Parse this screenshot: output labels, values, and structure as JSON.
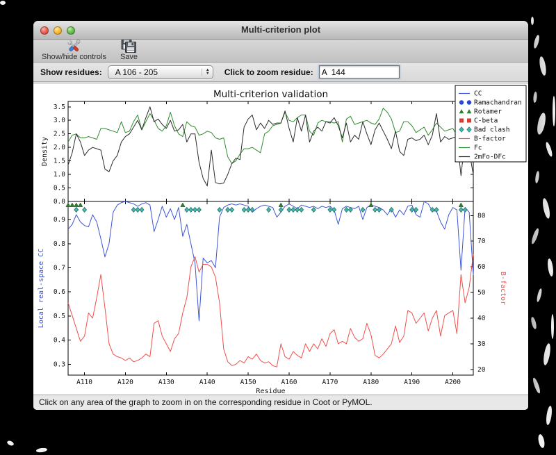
{
  "window": {
    "title": "Multi-criterion plot"
  },
  "toolbar": {
    "show_hide_label": "Show/hide controls",
    "save_label": "Save"
  },
  "controls": {
    "show_residues_label": "Show residues:",
    "residue_range_value": "A 106 - 205",
    "zoom_residue_label": "Click to zoom residue:",
    "zoom_residue_value": "A  144"
  },
  "status_bar": {
    "message": "Click on any area of the graph to zoom in on the corresponding residue in Coot or PyMOL."
  },
  "colors": {
    "cc_blue": "#3b54d9",
    "bfactor_red": "#ee4f4b",
    "fc_green": "#2e8b2e",
    "map_black": "#2b2b2b",
    "ramachandran_blue": "#2847d0",
    "rotamer_green": "#2e7d32",
    "cbeta_red": "#d93b2f",
    "clash_teal": "#45b5aa"
  },
  "legend": [
    {
      "label": "CC",
      "symbol": "line",
      "color": "#3b54d9"
    },
    {
      "label": "Ramachandran",
      "symbol": "circle",
      "color": "#2847d0"
    },
    {
      "label": "Rotamer",
      "symbol": "triangle",
      "color": "#2e7d32"
    },
    {
      "label": "C-beta",
      "symbol": "square",
      "color": "#d93b2f"
    },
    {
      "label": "Bad clash",
      "symbol": "diamond",
      "color": "#45b5aa"
    },
    {
      "label": "B-factor",
      "symbol": "line",
      "color": "#ee4f4b"
    },
    {
      "label": "Fc",
      "symbol": "line",
      "color": "#2e8b2e"
    },
    {
      "label": "2mFo-DFc",
      "symbol": "line",
      "color": "#2b2b2b"
    }
  ],
  "chart_data": {
    "type": "line",
    "title": "Multi-criterion validation",
    "x_label": "Residue",
    "x_range": [
      106,
      205
    ],
    "x_ticks": [
      110,
      120,
      130,
      140,
      150,
      160,
      170,
      180,
      190,
      200
    ],
    "x_tick_labels": [
      "A110",
      "A120",
      "A130",
      "A140",
      "A150",
      "A160",
      "A170",
      "A180",
      "A190",
      "A200"
    ],
    "panels": [
      {
        "name": "density",
        "ylabel": "Density",
        "ylim": [
          0,
          3.7
        ],
        "yticks": [
          0,
          0.5,
          1,
          1.5,
          2,
          2.5,
          3,
          3.5
        ],
        "series": [
          {
            "name": "Fc",
            "color": "#2e8b2e",
            "values": [
              2.2,
              2.45,
              2.5,
              2.35,
              2.35,
              2.4,
              2.35,
              2.3,
              2.7,
              2.7,
              2.65,
              2.6,
              2.55,
              2.95,
              2.55,
              2.6,
              2.95,
              3.2,
              2.65,
              2.95,
              3.25,
              3.0,
              2.7,
              2.6,
              2.8,
              3.3,
              2.8,
              2.5,
              2.4,
              2.95,
              2.8,
              2.75,
              2.45,
              2.5,
              2.6,
              2.55,
              2.35,
              2.3,
              2.35,
              1.65,
              1.4,
              1.5,
              1.75,
              1.95,
              1.95,
              2.0,
              1.9,
              1.8,
              2.5,
              2.6,
              2.8,
              2.85,
              2.9,
              3.3,
              3.0,
              2.95,
              3.1,
              3.2,
              3.2,
              2.6,
              2.45,
              2.9,
              3.0,
              2.95,
              2.95,
              2.9,
              2.95,
              2.2,
              3.05,
              3.15,
              2.85,
              2.9,
              2.95,
              3.0,
              2.9,
              2.85,
              3.05,
              3.45,
              3.3,
              3.05,
              2.55,
              2.6,
              2.95,
              2.95,
              2.8,
              2.55,
              2.65,
              2.75,
              2.45,
              2.65,
              2.9,
              2.75,
              2.6,
              2.65,
              2.7,
              2.45,
              2.4,
              2.65,
              2.3,
              2.85
            ]
          },
          {
            "name": "2mFo-DFc",
            "color": "#2b2b2b",
            "values": [
              1.35,
              1.8,
              2.5,
              2.2,
              1.7,
              1.9,
              2.0,
              1.95,
              1.9,
              1.2,
              1.1,
              1.5,
              1.7,
              2.2,
              2.4,
              2.5,
              2.75,
              3.0,
              2.65,
              3.1,
              3.5,
              2.95,
              3.05,
              2.85,
              2.7,
              3.0,
              2.6,
              2.65,
              2.85,
              2.2,
              2.5,
              2.5,
              1.45,
              0.85,
              0.57,
              1.9,
              0.7,
              0.65,
              0.68,
              1.0,
              1.4,
              1.6,
              1.55,
              2.75,
              3.05,
              3.2,
              2.65,
              2.9,
              2.7,
              3.0,
              2.85,
              2.9,
              2.9,
              3.35,
              2.7,
              2.2,
              3.1,
              2.6,
              3.2,
              2.2,
              2.6,
              2.75,
              2.6,
              2.95,
              2.9,
              3.1,
              2.8,
              2.35,
              2.9,
              2.2,
              2.45,
              2.3,
              2.95,
              2.5,
              2.1,
              2.65,
              2.9,
              2.6,
              2.3,
              1.95,
              2.6,
              1.85,
              1.7,
              2.3,
              2.35,
              2.25,
              2.3,
              2.45,
              2.1,
              2.45,
              3.25,
              2.2,
              2.4,
              2.3,
              2.35,
              2.4,
              0.95,
              2.35,
              1.85,
              1.0
            ]
          }
        ]
      },
      {
        "name": "cc_bfactor",
        "ylabel_left": "Local real-space CC",
        "ylabel_left_color": "#3b54d9",
        "ylim_left": [
          0.255,
          0.975
        ],
        "yticks_left": [
          0.3,
          0.4,
          0.5,
          0.6,
          0.7,
          0.8,
          0.9
        ],
        "ylabel_right": "B-factor",
        "ylabel_right_color": "#ee4f4b",
        "ylim_right": [
          17.8,
          85.5
        ],
        "yticks_right": [
          20,
          30,
          40,
          50,
          60,
          70,
          80
        ],
        "series": [
          {
            "name": "CC",
            "axis": "left",
            "color": "#3b54d9",
            "values": [
              0.86,
              0.88,
              0.92,
              0.89,
              0.875,
              0.87,
              0.92,
              0.89,
              0.82,
              0.745,
              0.8,
              0.93,
              0.96,
              0.97,
              0.975,
              0.97,
              0.965,
              0.955,
              0.965,
              0.97,
              0.96,
              0.85,
              0.9,
              0.955,
              0.91,
              0.945,
              0.9,
              0.95,
              0.83,
              0.88,
              0.8,
              0.72,
              0.48,
              0.74,
              0.72,
              0.73,
              0.7,
              0.91,
              0.95,
              0.96,
              0.965,
              0.96,
              0.965,
              0.96,
              0.955,
              0.93,
              0.945,
              0.955,
              0.96,
              0.955,
              0.95,
              0.91,
              0.93,
              0.955,
              0.965,
              0.955,
              0.945,
              0.96,
              0.955,
              0.95,
              0.955,
              0.945,
              0.955,
              0.95,
              0.955,
              0.94,
              0.88,
              0.945,
              0.955,
              0.95,
              0.945,
              0.955,
              0.9,
              0.95,
              0.96,
              0.955,
              0.95,
              0.94,
              0.92,
              0.945,
              0.91,
              0.94,
              0.92,
              0.955,
              0.96,
              0.92,
              0.91,
              0.975,
              0.965,
              0.935,
              0.935,
              0.89,
              0.86,
              0.92,
              0.95,
              0.94,
              0.69,
              0.95,
              0.93,
              0.67
            ]
          },
          {
            "name": "B-factor",
            "axis": "right",
            "color": "#ee4f4b",
            "values": [
              46,
              41,
              36,
              31,
              33,
              42,
              40,
              48,
              57,
              44,
              30,
              26,
              25,
              24.5,
              23.5,
              24.5,
              23,
              23.5,
              24.5,
              26,
              25,
              38,
              39,
              33,
              30,
              27,
              32,
              34,
              42,
              48,
              60,
              64,
              58,
              61,
              61,
              60,
              56,
              46,
              28,
              23,
              21.5,
              22,
              23.5,
              22.5,
              25,
              24,
              26,
              23.5,
              22.5,
              23,
              21.5,
              21,
              30,
              25,
              24,
              27,
              25.5,
              24.5,
              30,
              27,
              30,
              28,
              32,
              29,
              34,
              35.5,
              30,
              31,
              30,
              36,
              32.5,
              31,
              32,
              38,
              33.5,
              25.5,
              24.5,
              26,
              28,
              30,
              37,
              30.5,
              33,
              43,
              42,
              38,
              40,
              42,
              35,
              40,
              43,
              33,
              41,
              42,
              43,
              34,
              57,
              46,
              52,
              65
            ]
          }
        ],
        "markers": [
          {
            "name": "Rotamer",
            "shape": "triangle",
            "color": "#2e7d32",
            "residues": [
              106,
              107,
              108,
              109,
              134,
              158,
              180,
              202
            ]
          },
          {
            "name": "Bad clash",
            "shape": "diamond",
            "color": "#45b5aa",
            "residues": [
              108,
              110,
              122,
              123,
              124,
              135,
              136,
              137,
              138,
              143,
              145,
              146,
              149,
              150,
              151,
              155,
              158,
              160,
              161,
              162,
              163,
              166,
              170,
              171,
              174,
              175,
              178,
              181,
              182,
              185,
              190,
              191,
              195,
              196,
              202,
              203
            ]
          },
          {
            "name": "Ramachandran",
            "shape": "circle",
            "color": "#2847d0",
            "residues": []
          },
          {
            "name": "C-beta",
            "shape": "square",
            "color": "#d93b2f",
            "residues": []
          }
        ]
      }
    ]
  }
}
